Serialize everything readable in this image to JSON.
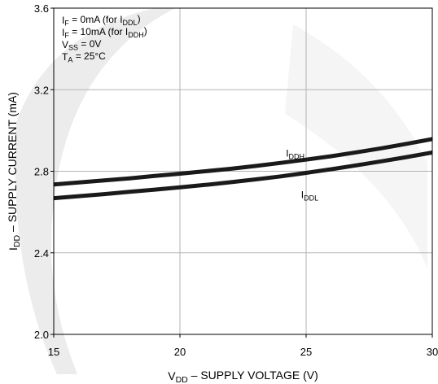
{
  "chart_data": {
    "type": "line",
    "title": "",
    "xlabel_parts": [
      {
        "t": "V",
        "s": "base"
      },
      {
        "t": "DD",
        "s": "sub"
      },
      {
        "t": " – SUPPLY VOLTAGE (V)",
        "s": "base"
      }
    ],
    "ylabel_parts": [
      {
        "t": "I",
        "s": "base"
      },
      {
        "t": "DD",
        "s": "sub"
      },
      {
        "t": " – SUPPLY CURRENT (mA)",
        "s": "base"
      }
    ],
    "xlim": [
      15,
      30
    ],
    "ylim": [
      2.0,
      3.6
    ],
    "x_ticks": [
      15,
      20,
      25,
      30
    ],
    "y_ticks": [
      2.0,
      2.4,
      2.8,
      3.2,
      3.6
    ],
    "x_tick_labels": [
      "15",
      "20",
      "25",
      "30"
    ],
    "y_tick_labels": [
      "2.0",
      "2.4",
      "2.8",
      "3.2",
      "3.6"
    ],
    "grid": true,
    "conditions": [
      [
        {
          "t": "I",
          "s": "base"
        },
        {
          "t": "F",
          "s": "sub"
        },
        {
          "t": " = 0mA (for I",
          "s": "base"
        },
        {
          "t": "DDL",
          "s": "sub"
        },
        {
          "t": ")",
          "s": "base"
        }
      ],
      [
        {
          "t": "I",
          "s": "base"
        },
        {
          "t": "F",
          "s": "sub"
        },
        {
          "t": " = 10mA (for I",
          "s": "base"
        },
        {
          "t": "DDH",
          "s": "sub"
        },
        {
          "t": ")",
          "s": "base"
        }
      ],
      [
        {
          "t": "V",
          "s": "base"
        },
        {
          "t": "SS",
          "s": "sub"
        },
        {
          "t": " = 0V",
          "s": "base"
        }
      ],
      [
        {
          "t": "T",
          "s": "base"
        },
        {
          "t": "A",
          "s": "sub"
        },
        {
          "t": " = 25°C",
          "s": "base"
        }
      ]
    ],
    "series": [
      {
        "name_parts": [
          {
            "t": "I",
            "s": "base"
          },
          {
            "t": "DDH",
            "s": "sub"
          }
        ],
        "label_anchor": {
          "x": 24.2,
          "y": 2.871
        },
        "x": [
          15,
          16,
          17,
          18,
          19,
          20,
          21,
          22,
          23,
          24,
          25,
          26,
          27,
          28,
          29,
          30
        ],
        "y": [
          2.735,
          2.745,
          2.755,
          2.765,
          2.777,
          2.788,
          2.8,
          2.812,
          2.826,
          2.841,
          2.857,
          2.874,
          2.893,
          2.913,
          2.935,
          2.958
        ]
      },
      {
        "name_parts": [
          {
            "t": "I",
            "s": "base"
          },
          {
            "t": "DDL",
            "s": "sub"
          }
        ],
        "label_anchor": {
          "x": 24.8,
          "y": 2.668
        },
        "x": [
          15,
          16,
          17,
          18,
          19,
          20,
          21,
          22,
          23,
          24,
          25,
          26,
          27,
          28,
          29,
          30
        ],
        "y": [
          2.668,
          2.678,
          2.688,
          2.699,
          2.71,
          2.721,
          2.733,
          2.746,
          2.76,
          2.775,
          2.792,
          2.81,
          2.829,
          2.849,
          2.87,
          2.892
        ]
      }
    ]
  }
}
